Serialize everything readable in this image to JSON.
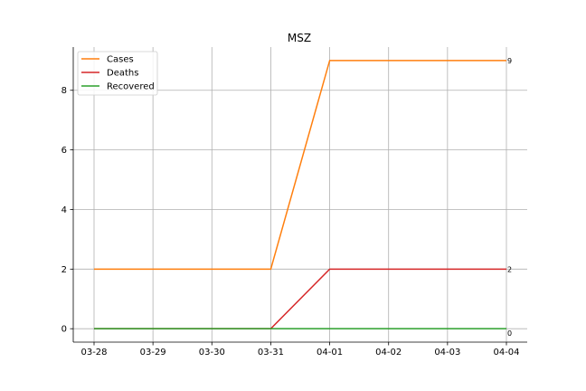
{
  "chart_data": {
    "type": "line",
    "title": "MSZ",
    "xlabel": "",
    "ylabel": "",
    "categories": [
      "03-28",
      "03-29",
      "03-30",
      "03-31",
      "04-01",
      "04-02",
      "04-03",
      "04-04"
    ],
    "ylim": [
      -0.45,
      9.45
    ],
    "yticks": [
      0,
      2,
      4,
      6,
      8
    ],
    "grid": true,
    "legend_position": "top-left",
    "series": [
      {
        "name": "Cases",
        "color": "#ff7f0e",
        "values": [
          2,
          2,
          2,
          2,
          9,
          9,
          9,
          9
        ],
        "end_label": "9"
      },
      {
        "name": "Deaths",
        "color": "#d62728",
        "values": [
          0,
          0,
          0,
          0,
          2,
          2,
          2,
          2
        ],
        "end_label": "2"
      },
      {
        "name": "Recovered",
        "color": "#2ca02c",
        "values": [
          0,
          0,
          0,
          0,
          0,
          0,
          0,
          0
        ],
        "end_label": "0"
      }
    ]
  }
}
